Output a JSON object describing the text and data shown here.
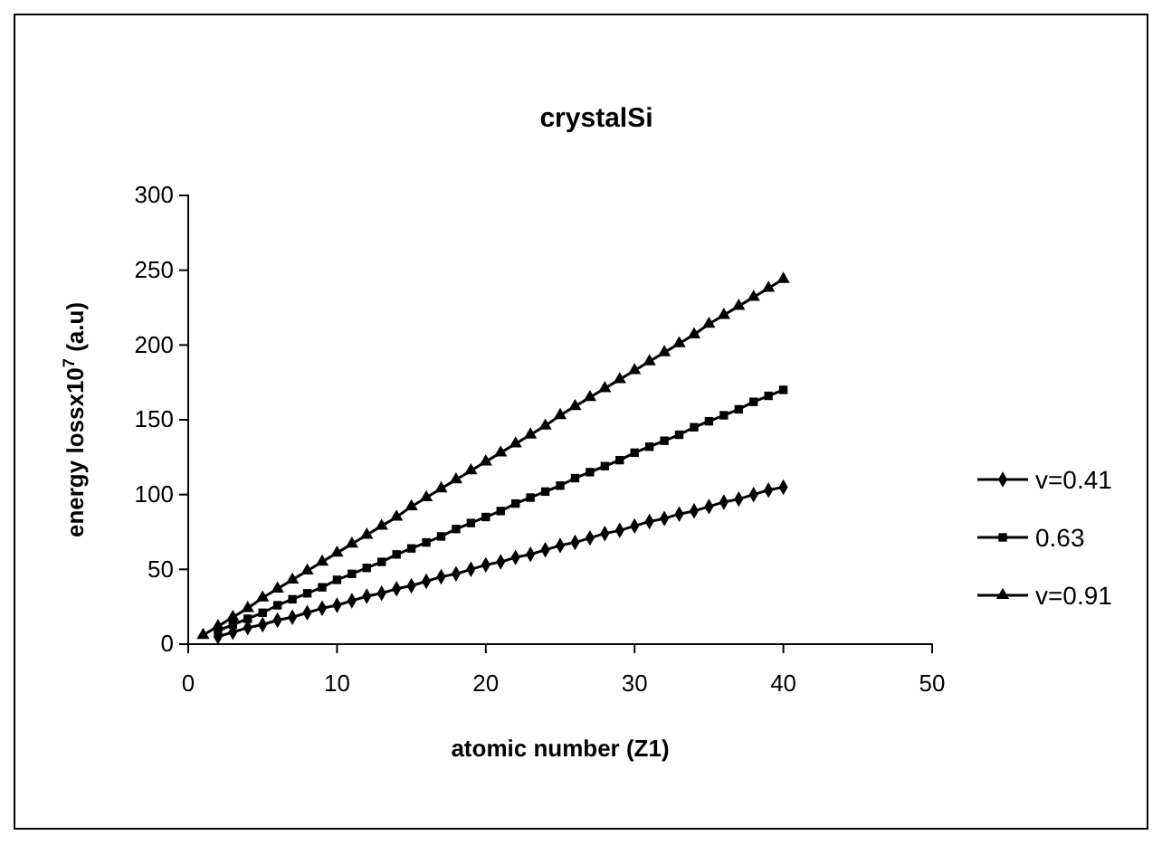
{
  "chart_data": {
    "type": "line",
    "title": "crystalSi",
    "xlabel": "atomic number (Z1)",
    "ylabel": "energy lossx10$^{7}$ (a.u)",
    "x": [
      1,
      2,
      3,
      4,
      5,
      6,
      7,
      8,
      9,
      10,
      11,
      12,
      13,
      14,
      15,
      16,
      17,
      18,
      19,
      20,
      21,
      22,
      23,
      24,
      25,
      26,
      27,
      28,
      29,
      30,
      31,
      32,
      33,
      34,
      35,
      36,
      37,
      38,
      39,
      40
    ],
    "xlim": [
      0,
      50
    ],
    "xticks": [
      0,
      10,
      20,
      30,
      40,
      50
    ],
    "ylim": [
      0,
      300
    ],
    "yticks": [
      0,
      50,
      100,
      150,
      200,
      250,
      300
    ],
    "grid": false,
    "legend": "right",
    "series": [
      {
        "name": "v=0.41",
        "color": "#000000",
        "marker": "diamond",
        "values": [
          null,
          5,
          8,
          11,
          13,
          16,
          18,
          21,
          24,
          26,
          29,
          32,
          34,
          37,
          39,
          42,
          45,
          47,
          50,
          53,
          55,
          58,
          60,
          63,
          66,
          68,
          71,
          74,
          76,
          79,
          82,
          84,
          87,
          89,
          92,
          95,
          97,
          100,
          103,
          105
        ]
      },
      {
        "name": "0.63",
        "color": "#000000",
        "marker": "square",
        "values": [
          null,
          9,
          13,
          17,
          21,
          26,
          30,
          34,
          38,
          43,
          47,
          51,
          55,
          60,
          64,
          68,
          72,
          77,
          81,
          85,
          89,
          94,
          98,
          102,
          106,
          111,
          115,
          119,
          123,
          128,
          132,
          136,
          140,
          145,
          149,
          153,
          157,
          162,
          166,
          170
        ]
      },
      {
        "name": "v=0.91",
        "color": "#000000",
        "marker": "triangle",
        "values": [
          6,
          12,
          18,
          24,
          31,
          37,
          43,
          49,
          55,
          61,
          67,
          73,
          79,
          85,
          92,
          98,
          104,
          110,
          116,
          122,
          128,
          134,
          140,
          146,
          153,
          159,
          165,
          171,
          177,
          183,
          189,
          195,
          201,
          207,
          214,
          220,
          226,
          232,
          238,
          244
        ]
      }
    ]
  }
}
